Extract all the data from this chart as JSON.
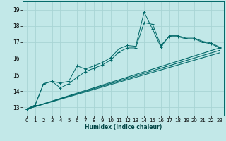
{
  "xlabel": "Humidex (Indice chaleur)",
  "bg_color": "#c2e8e8",
  "grid_color": "#a8d4d4",
  "line_color": "#006868",
  "xlim": [
    -0.5,
    23.5
  ],
  "ylim": [
    12.5,
    19.5
  ],
  "yticks": [
    13,
    14,
    15,
    16,
    17,
    18,
    19
  ],
  "xticks": [
    0,
    1,
    2,
    3,
    4,
    5,
    6,
    7,
    8,
    9,
    10,
    11,
    12,
    13,
    14,
    15,
    16,
    17,
    18,
    19,
    20,
    21,
    22,
    23
  ],
  "line1_x": [
    0,
    1,
    2,
    3,
    4,
    5,
    6,
    7,
    8,
    9,
    10,
    11,
    12,
    13,
    14,
    15,
    16,
    17,
    18,
    19,
    20,
    21,
    22,
    23
  ],
  "line1_y": [
    12.9,
    13.15,
    14.45,
    14.6,
    14.5,
    14.6,
    15.55,
    15.35,
    15.55,
    15.75,
    16.05,
    16.6,
    16.8,
    16.75,
    18.85,
    17.8,
    16.7,
    17.4,
    17.4,
    17.25,
    17.25,
    17.05,
    16.95,
    16.7
  ],
  "line2_x": [
    0,
    1,
    2,
    3,
    4,
    5,
    6,
    7,
    8,
    9,
    10,
    11,
    12,
    13,
    14,
    15,
    16,
    17,
    18,
    19,
    20,
    21,
    22,
    23
  ],
  "line2_y": [
    12.9,
    13.15,
    14.45,
    14.6,
    14.2,
    14.45,
    14.85,
    15.2,
    15.4,
    15.6,
    15.9,
    16.4,
    16.65,
    16.65,
    18.2,
    18.1,
    16.8,
    17.35,
    17.35,
    17.2,
    17.2,
    17.0,
    16.9,
    16.65
  ],
  "line3_x": [
    0,
    23
  ],
  "line3_y": [
    12.9,
    16.65
  ],
  "line4_x": [
    0,
    23
  ],
  "line4_y": [
    12.9,
    16.5
  ],
  "line5_x": [
    0,
    23
  ],
  "line5_y": [
    12.9,
    16.35
  ]
}
